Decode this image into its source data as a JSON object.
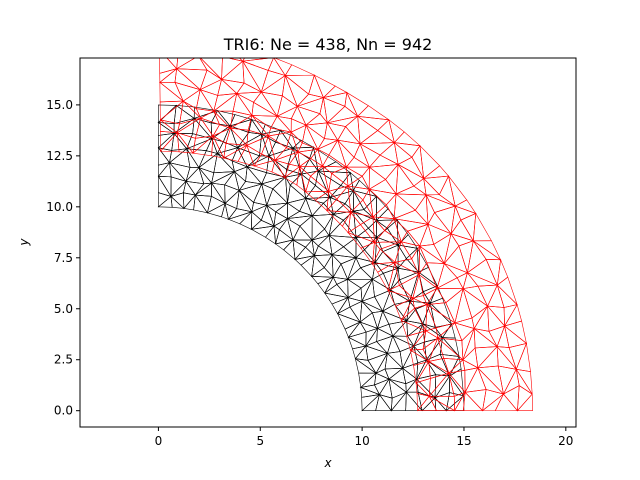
{
  "chart_data": {
    "type": "mesh",
    "title": "TRI6: Ne = 438, Nn = 942",
    "xlabel": "x",
    "ylabel": "y",
    "xlim": [
      -3.85,
      20.5
    ],
    "ylim": [
      -0.8,
      17.3
    ],
    "xticks": [
      0,
      5,
      10,
      15,
      20
    ],
    "yticks": [
      0.0,
      2.5,
      5.0,
      7.5,
      10.0,
      12.5,
      15.0
    ],
    "xtick_labels": [
      "0",
      "5",
      "10",
      "15",
      "20"
    ],
    "ytick_labels": [
      "0.0",
      "2.5",
      "5.0",
      "7.5",
      "10.0",
      "12.5",
      "15.0"
    ],
    "grid": false,
    "series": [
      {
        "color": "#000000",
        "geometry": "quarter-annulus",
        "inner_radius": 10,
        "outer_radius": 15,
        "center": [
          0,
          0
        ]
      },
      {
        "color": "#ff0000",
        "geometry": "deformed quarter-annulus",
        "inner_radius": 11.5,
        "outer_radius": 16.6,
        "center": [
          0,
          0
        ]
      }
    ]
  }
}
